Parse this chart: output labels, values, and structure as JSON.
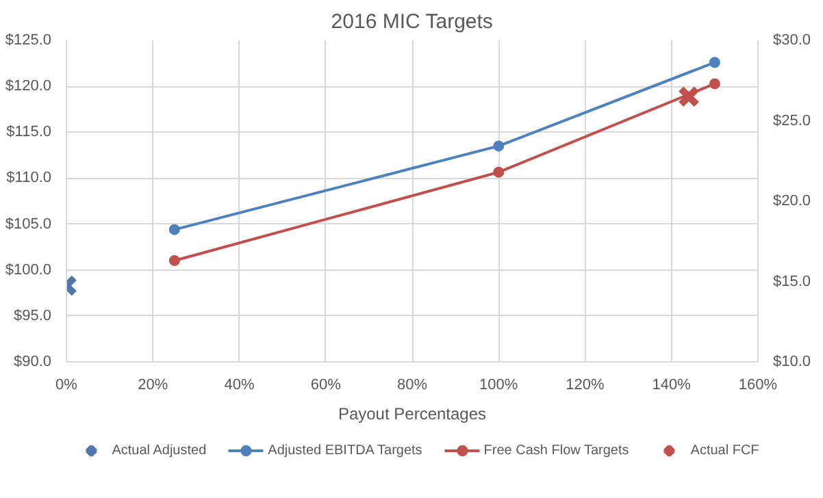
{
  "chart_data": {
    "type": "line",
    "title": "2016 MIC Targets",
    "xlabel": "Payout Percentages",
    "xlim": [
      0,
      160
    ],
    "xticks": [
      {
        "value": 0,
        "label": "0%"
      },
      {
        "value": 20,
        "label": "20%"
      },
      {
        "value": 40,
        "label": "40%"
      },
      {
        "value": 60,
        "label": "60%"
      },
      {
        "value": 80,
        "label": "80%"
      },
      {
        "value": 100,
        "label": "100%"
      },
      {
        "value": 120,
        "label": "120%"
      },
      {
        "value": 140,
        "label": "140%"
      },
      {
        "value": 160,
        "label": "160%"
      }
    ],
    "ylim": [
      90,
      125
    ],
    "yticks": [
      {
        "value": 90,
        "label": "$90.0"
      },
      {
        "value": 95,
        "label": "$95.0"
      },
      {
        "value": 100,
        "label": "$100.0"
      },
      {
        "value": 105,
        "label": "$105.0"
      },
      {
        "value": 110,
        "label": "$110.0"
      },
      {
        "value": 115,
        "label": "$115.0"
      },
      {
        "value": 120,
        "label": "$120.0"
      },
      {
        "value": 125,
        "label": "$125.0"
      }
    ],
    "y2lim": [
      10,
      30
    ],
    "y2ticks": [
      {
        "value": 10,
        "label": "$10.0"
      },
      {
        "value": 15,
        "label": "$15.0"
      },
      {
        "value": 20,
        "label": "$20.0"
      },
      {
        "value": 25,
        "label": "$25.0"
      },
      {
        "value": 30,
        "label": "$30.0"
      }
    ],
    "grid": true,
    "legend": "bottom",
    "marker": "circle",
    "line_style": "solid",
    "series": [
      {
        "name": "Actual Adjusted",
        "type": "scatter",
        "marker": "cross",
        "color": "#4f77aa",
        "x": [
          0
        ],
        "values": [
          98.3
        ]
      },
      {
        "name": "Adjusted EBITDA Targets",
        "color": "#4f81bd",
        "x": [
          25,
          100,
          150
        ],
        "values": [
          104.4,
          113.5,
          122.6
        ]
      },
      {
        "name": "Free Cash Flow Targets",
        "color": "#c0504d",
        "axis": "y2",
        "x": [
          25,
          100,
          150
        ],
        "values": [
          16.3,
          21.8,
          27.3
        ]
      },
      {
        "name": "Actual FCF",
        "type": "scatter",
        "marker": "cross",
        "color": "#c0504d",
        "axis": "y2",
        "x": [
          144
        ],
        "values": [
          26.5
        ]
      }
    ]
  }
}
